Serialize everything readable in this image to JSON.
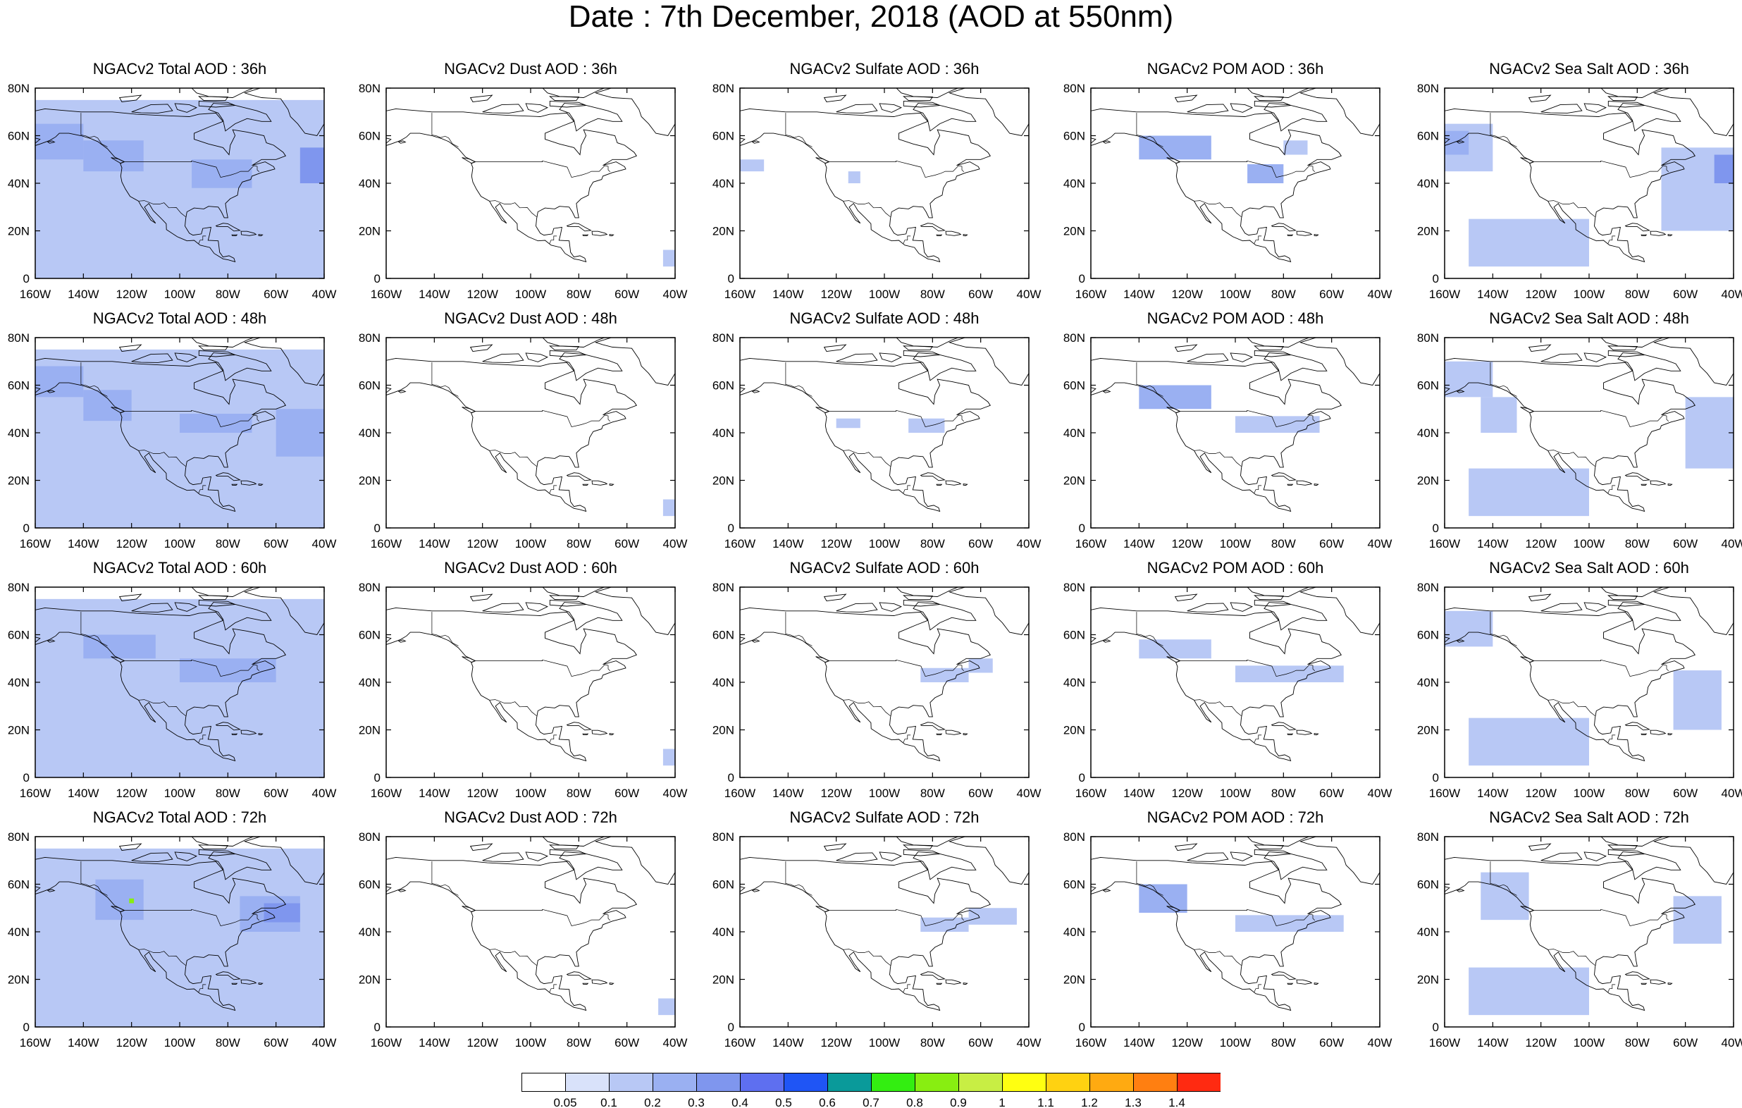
{
  "title": "Date : 7th December, 2018 (AOD at 550nm)",
  "map": {
    "lon_range": [
      -160,
      -40
    ],
    "lat_range": [
      0,
      80
    ],
    "lon_ticks": [
      "160W",
      "140W",
      "120W",
      "100W",
      "80W",
      "60W",
      "40W"
    ],
    "lat_ticks": [
      "0",
      "20N",
      "40N",
      "60N",
      "80N"
    ]
  },
  "panels": [
    {
      "title": "NGACv2 Total AOD : 36h",
      "field": "total",
      "hour": 36
    },
    {
      "title": "NGACv2 Dust AOD : 36h",
      "field": "dust",
      "hour": 36
    },
    {
      "title": "NGACv2 Sulfate AOD : 36h",
      "field": "sulfate",
      "hour": 36
    },
    {
      "title": "NGACv2 POM AOD : 36h",
      "field": "pom",
      "hour": 36
    },
    {
      "title": "NGACv2 Sea Salt AOD : 36h",
      "field": "seasalt",
      "hour": 36
    },
    {
      "title": "NGACv2 Total AOD : 48h",
      "field": "total",
      "hour": 48
    },
    {
      "title": "NGACv2 Dust AOD : 48h",
      "field": "dust",
      "hour": 48
    },
    {
      "title": "NGACv2 Sulfate AOD : 48h",
      "field": "sulfate",
      "hour": 48
    },
    {
      "title": "NGACv2 POM AOD : 48h",
      "field": "pom",
      "hour": 48
    },
    {
      "title": "NGACv2 Sea Salt AOD : 48h",
      "field": "seasalt",
      "hour": 48
    },
    {
      "title": "NGACv2 Total AOD : 60h",
      "field": "total",
      "hour": 60
    },
    {
      "title": "NGACv2 Dust AOD : 60h",
      "field": "dust",
      "hour": 60
    },
    {
      "title": "NGACv2 Sulfate AOD : 60h",
      "field": "sulfate",
      "hour": 60
    },
    {
      "title": "NGACv2 POM AOD : 60h",
      "field": "pom",
      "hour": 60
    },
    {
      "title": "NGACv2 Sea Salt AOD : 60h",
      "field": "seasalt",
      "hour": 60
    },
    {
      "title": "NGACv2 Total AOD : 72h",
      "field": "total",
      "hour": 72
    },
    {
      "title": "NGACv2 Dust AOD : 72h",
      "field": "dust",
      "hour": 72
    },
    {
      "title": "NGACv2 Sulfate AOD : 72h",
      "field": "sulfate",
      "hour": 72
    },
    {
      "title": "NGACv2 POM AOD : 72h",
      "field": "pom",
      "hour": 72
    },
    {
      "title": "NGACv2 Sea Salt  AOD : 72h",
      "field": "seasalt",
      "hour": 72
    }
  ],
  "colorbar": {
    "labels": [
      "0.05",
      "0.1",
      "0.2",
      "0.3",
      "0.4",
      "0.5",
      "0.6",
      "0.7",
      "0.8",
      "0.9",
      "1",
      "1.1",
      "1.2",
      "1.3",
      "1.4"
    ],
    "colors": [
      "#ffffff",
      "#d9e2fa",
      "#b8c8f5",
      "#9ab0f2",
      "#7f96ee",
      "#5e6ff0",
      "#1f55f5",
      "#0a9a9a",
      "#33ee11",
      "#88ee11",
      "#c8ee44",
      "#ffff11",
      "#ffd211",
      "#ffaa11",
      "#ff7f11",
      "#ff2a11"
    ]
  },
  "fields": {
    "total": {
      "36": [
        {
          "lon": [
            -160,
            -40
          ],
          "lat": [
            0,
            75
          ],
          "v": 0.1
        },
        {
          "lon": [
            -160,
            -140
          ],
          "lat": [
            50,
            65
          ],
          "v": 0.2
        },
        {
          "lon": [
            -140,
            -115
          ],
          "lat": [
            45,
            58
          ],
          "v": 0.2
        },
        {
          "lon": [
            -95,
            -70
          ],
          "lat": [
            38,
            50
          ],
          "v": 0.2
        },
        {
          "lon": [
            -50,
            -40
          ],
          "lat": [
            40,
            55
          ],
          "v": 0.3
        }
      ],
      "48": [
        {
          "lon": [
            -160,
            -40
          ],
          "lat": [
            0,
            75
          ],
          "v": 0.1
        },
        {
          "lon": [
            -160,
            -140
          ],
          "lat": [
            55,
            68
          ],
          "v": 0.2
        },
        {
          "lon": [
            -140,
            -120
          ],
          "lat": [
            45,
            58
          ],
          "v": 0.2
        },
        {
          "lon": [
            -100,
            -70
          ],
          "lat": [
            40,
            48
          ],
          "v": 0.2
        },
        {
          "lon": [
            -60,
            -40
          ],
          "lat": [
            30,
            50
          ],
          "v": 0.2
        }
      ],
      "60": [
        {
          "lon": [
            -160,
            -40
          ],
          "lat": [
            0,
            75
          ],
          "v": 0.1
        },
        {
          "lon": [
            -140,
            -110
          ],
          "lat": [
            50,
            60
          ],
          "v": 0.2
        },
        {
          "lon": [
            -100,
            -60
          ],
          "lat": [
            40,
            50
          ],
          "v": 0.2
        }
      ],
      "72": [
        {
          "lon": [
            -160,
            -40
          ],
          "lat": [
            0,
            75
          ],
          "v": 0.1
        },
        {
          "lon": [
            -135,
            -115
          ],
          "lat": [
            45,
            62
          ],
          "v": 0.2
        },
        {
          "lon": [
            -75,
            -50
          ],
          "lat": [
            40,
            55
          ],
          "v": 0.2
        },
        {
          "lon": [
            -65,
            -50
          ],
          "lat": [
            44,
            52
          ],
          "v": 0.3
        },
        {
          "lon": [
            -121,
            -119
          ],
          "lat": [
            52,
            54
          ],
          "v": 0.85
        }
      ]
    },
    "dust": {
      "36": [
        {
          "lon": [
            -45,
            -40
          ],
          "lat": [
            5,
            12
          ],
          "v": 0.1
        }
      ],
      "48": [
        {
          "lon": [
            -45,
            -40
          ],
          "lat": [
            5,
            12
          ],
          "v": 0.1
        }
      ],
      "60": [
        {
          "lon": [
            -45,
            -40
          ],
          "lat": [
            5,
            12
          ],
          "v": 0.1
        }
      ],
      "72": [
        {
          "lon": [
            -47,
            -40
          ],
          "lat": [
            5,
            12
          ],
          "v": 0.1
        }
      ]
    },
    "sulfate": {
      "36": [
        {
          "lon": [
            -160,
            -150
          ],
          "lat": [
            45,
            50
          ],
          "v": 0.1
        },
        {
          "lon": [
            -115,
            -110
          ],
          "lat": [
            40,
            45
          ],
          "v": 0.1
        }
      ],
      "48": [
        {
          "lon": [
            -90,
            -75
          ],
          "lat": [
            40,
            46
          ],
          "v": 0.1
        },
        {
          "lon": [
            -120,
            -110
          ],
          "lat": [
            42,
            46
          ],
          "v": 0.1
        }
      ],
      "60": [
        {
          "lon": [
            -85,
            -65
          ],
          "lat": [
            40,
            46
          ],
          "v": 0.1
        },
        {
          "lon": [
            -65,
            -55
          ],
          "lat": [
            44,
            50
          ],
          "v": 0.1
        }
      ],
      "72": [
        {
          "lon": [
            -85,
            -65
          ],
          "lat": [
            40,
            46
          ],
          "v": 0.1
        },
        {
          "lon": [
            -65,
            -45
          ],
          "lat": [
            43,
            50
          ],
          "v": 0.1
        }
      ]
    },
    "pom": {
      "36": [
        {
          "lon": [
            -140,
            -110
          ],
          "lat": [
            50,
            60
          ],
          "v": 0.2
        },
        {
          "lon": [
            -95,
            -80
          ],
          "lat": [
            40,
            48
          ],
          "v": 0.2
        },
        {
          "lon": [
            -80,
            -70
          ],
          "lat": [
            52,
            58
          ],
          "v": 0.1
        }
      ],
      "48": [
        {
          "lon": [
            -140,
            -110
          ],
          "lat": [
            50,
            60
          ],
          "v": 0.2
        },
        {
          "lon": [
            -100,
            -65
          ],
          "lat": [
            40,
            47
          ],
          "v": 0.1
        }
      ],
      "60": [
        {
          "lon": [
            -140,
            -110
          ],
          "lat": [
            50,
            58
          ],
          "v": 0.1
        },
        {
          "lon": [
            -100,
            -55
          ],
          "lat": [
            40,
            47
          ],
          "v": 0.1
        }
      ],
      "72": [
        {
          "lon": [
            -140,
            -120
          ],
          "lat": [
            48,
            60
          ],
          "v": 0.2
        },
        {
          "lon": [
            -100,
            -55
          ],
          "lat": [
            40,
            47
          ],
          "v": 0.1
        }
      ]
    },
    "seasalt": {
      "36": [
        {
          "lon": [
            -160,
            -140
          ],
          "lat": [
            45,
            65
          ],
          "v": 0.1
        },
        {
          "lon": [
            -160,
            -150
          ],
          "lat": [
            52,
            62
          ],
          "v": 0.2
        },
        {
          "lon": [
            -70,
            -40
          ],
          "lat": [
            20,
            55
          ],
          "v": 0.1
        },
        {
          "lon": [
            -48,
            -40
          ],
          "lat": [
            40,
            52
          ],
          "v": 0.3
        },
        {
          "lon": [
            -150,
            -100
          ],
          "lat": [
            5,
            25
          ],
          "v": 0.1
        }
      ],
      "48": [
        {
          "lon": [
            -160,
            -140
          ],
          "lat": [
            55,
            70
          ],
          "v": 0.1
        },
        {
          "lon": [
            -145,
            -130
          ],
          "lat": [
            40,
            55
          ],
          "v": 0.1
        },
        {
          "lon": [
            -60,
            -40
          ],
          "lat": [
            25,
            55
          ],
          "v": 0.1
        },
        {
          "lon": [
            -150,
            -100
          ],
          "lat": [
            5,
            25
          ],
          "v": 0.1
        }
      ],
      "60": [
        {
          "lon": [
            -160,
            -140
          ],
          "lat": [
            55,
            70
          ],
          "v": 0.1
        },
        {
          "lon": [
            -65,
            -45
          ],
          "lat": [
            20,
            45
          ],
          "v": 0.1
        },
        {
          "lon": [
            -150,
            -100
          ],
          "lat": [
            5,
            25
          ],
          "v": 0.1
        }
      ],
      "72": [
        {
          "lon": [
            -145,
            -125
          ],
          "lat": [
            45,
            65
          ],
          "v": 0.1
        },
        {
          "lon": [
            -65,
            -45
          ],
          "lat": [
            35,
            55
          ],
          "v": 0.1
        },
        {
          "lon": [
            -150,
            -100
          ],
          "lat": [
            5,
            25
          ],
          "v": 0.1
        }
      ]
    }
  }
}
